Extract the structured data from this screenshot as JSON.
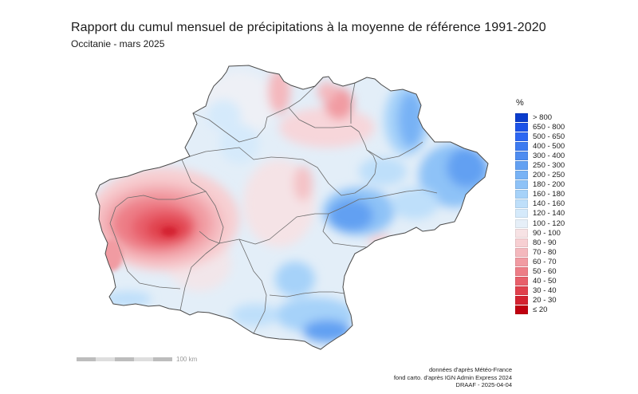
{
  "map": {
    "title": "Rapport du cumul mensuel de précipitations à la moyenne de référence 1991-2020",
    "subtitle": "Occitanie - mars 2025",
    "region": "Occitanie"
  },
  "legend": {
    "unit": "%",
    "classes": [
      {
        "label": "> 800",
        "color": "#0a3ccc"
      },
      {
        "label": "650 - 800",
        "color": "#1c52e8"
      },
      {
        "label": "500 - 650",
        "color": "#2c66f2"
      },
      {
        "label": "400 - 500",
        "color": "#3c7af0"
      },
      {
        "label": "300 - 400",
        "color": "#4e8cf0"
      },
      {
        "label": "250 - 300",
        "color": "#62a0f2"
      },
      {
        "label": "200 - 250",
        "color": "#78b2f5"
      },
      {
        "label": "180 - 200",
        "color": "#8ec2f7"
      },
      {
        "label": "160 - 180",
        "color": "#a6d2f9"
      },
      {
        "label": "140 - 160",
        "color": "#bedffa"
      },
      {
        "label": "120 - 140",
        "color": "#d5eafb"
      },
      {
        "label": "100 - 120",
        "color": "#e6eff8"
      },
      {
        "label": "90 - 100",
        "color": "#f7e2e4"
      },
      {
        "label": "80 - 90",
        "color": "#f7cfd2"
      },
      {
        "label": "70 - 80",
        "color": "#f4b8bd"
      },
      {
        "label": "60 - 70",
        "color": "#f19ba2"
      },
      {
        "label": "50 - 60",
        "color": "#ed7d86"
      },
      {
        "label": "40 - 50",
        "color": "#e85f6a"
      },
      {
        "label": "30 - 40",
        "color": "#e0404c"
      },
      {
        "label": "20 - 30",
        "color": "#d42230"
      },
      {
        "label": "≤ 20",
        "color": "#c00010"
      }
    ]
  },
  "scale": {
    "label": "100 km"
  },
  "credits": {
    "line1": "données d'après Météo-France",
    "line2": "fond carto. d'après IGN Admin Express 2024",
    "line3": "DRAAF - 2025-04-04"
  }
}
